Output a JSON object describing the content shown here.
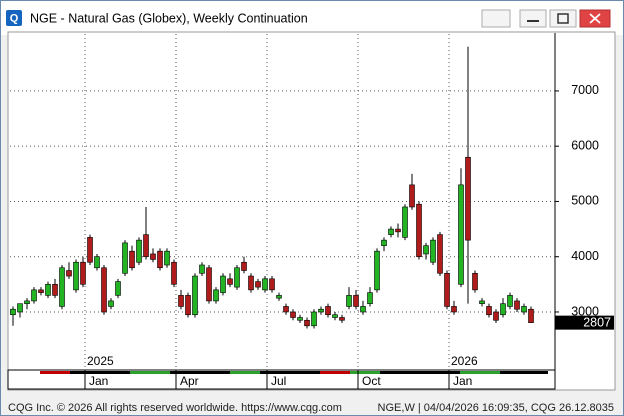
{
  "window": {
    "title": "NGE - Natural Gas (Globex), Weekly Continuation",
    "footer_left": "CQG Inc. © 2026 All rights reserved worldwide. https://www.cqg.com",
    "footer_right": "NGE,W | 04/04/2026 16:09:35, CQG 26.12.8035"
  },
  "chart_data": {
    "type": "candlestick",
    "categories": [
      null,
      null,
      null,
      null,
      null,
      null,
      null,
      null,
      null,
      null,
      null,
      null,
      "Jan",
      null,
      null,
      null,
      null,
      null,
      null,
      null,
      null,
      null,
      null,
      null,
      null,
      "Apr",
      null,
      null,
      null,
      null,
      null,
      null,
      null,
      null,
      null,
      null,
      null,
      null,
      "Jul",
      null,
      null,
      null,
      null,
      null,
      null,
      null,
      null,
      null,
      null,
      null,
      null,
      "Oct",
      null,
      null,
      null,
      null,
      null,
      null,
      null,
      null,
      null,
      null,
      null,
      null,
      "Jan",
      null,
      null,
      null,
      null,
      null,
      null,
      null,
      null,
      null,
      null
    ],
    "year_labels": [
      null,
      null,
      null,
      null,
      null,
      null,
      null,
      null,
      null,
      null,
      null,
      null,
      "2025",
      null,
      null,
      null,
      null,
      null,
      null,
      null,
      null,
      null,
      null,
      null,
      null,
      null,
      null,
      null,
      null,
      null,
      null,
      null,
      null,
      null,
      null,
      null,
      null,
      null,
      null,
      null,
      null,
      null,
      null,
      null,
      null,
      null,
      null,
      null,
      null,
      null,
      null,
      null,
      null,
      null,
      null,
      null,
      null,
      null,
      null,
      null,
      null,
      null,
      null,
      null,
      "2026",
      null,
      null,
      null,
      null,
      null,
      null,
      null,
      null,
      null,
      null
    ],
    "open": [
      2950,
      3000,
      3150,
      3200,
      3400,
      3300,
      3500,
      3100,
      3750,
      3400,
      3900,
      4350,
      3800,
      3800,
      3100,
      3300,
      3700,
      4100,
      3900,
      4400,
      4050,
      4100,
      3850,
      3900,
      3300,
      3300,
      2950,
      3700,
      3800,
      3200,
      3350,
      3600,
      3450,
      3900,
      3650,
      3550,
      3400,
      3600,
      3250,
      3100,
      3000,
      2850,
      2850,
      2750,
      3000,
      3100,
      2900,
      2900,
      3100,
      3300,
      3000,
      3150,
      3400,
      4200,
      4400,
      4500,
      4350,
      5300,
      4950,
      4050,
      3900,
      4400,
      3700,
      3100,
      3500,
      5800,
      3700,
      3150,
      3100,
      3000,
      2950,
      3100,
      3200,
      3000,
      3050
    ],
    "high": [
      3100,
      3150,
      3250,
      3450,
      3450,
      3550,
      3600,
      3850,
      3900,
      3950,
      4000,
      4400,
      4050,
      3850,
      3250,
      3600,
      4300,
      4200,
      4350,
      4900,
      4150,
      4150,
      4150,
      3950,
      3400,
      3350,
      3700,
      3900,
      3850,
      3450,
      3700,
      3700,
      3850,
      4000,
      3700,
      3600,
      3650,
      3650,
      3350,
      3150,
      3050,
      2950,
      2900,
      3050,
      3100,
      3150,
      3000,
      2950,
      3450,
      3400,
      3200,
      3450,
      4150,
      4350,
      4550,
      4600,
      4950,
      5500,
      5000,
      4250,
      4350,
      4450,
      3750,
      3200,
      5600,
      7800,
      3750,
      3250,
      3150,
      3050,
      3250,
      3350,
      3250,
      3150,
      3100
    ],
    "low": [
      2750,
      2900,
      3050,
      3150,
      3300,
      3250,
      3250,
      3050,
      3600,
      3350,
      3450,
      3850,
      3750,
      2950,
      3050,
      3250,
      3650,
      3750,
      3850,
      3950,
      3900,
      3750,
      3800,
      3450,
      3050,
      2900,
      2900,
      3650,
      3150,
      3150,
      3300,
      3450,
      3400,
      3700,
      3350,
      3400,
      3350,
      3350,
      3200,
      2950,
      2850,
      2800,
      2700,
      2700,
      2950,
      2900,
      2850,
      2800,
      3050,
      3050,
      2950,
      3100,
      3350,
      4100,
      4350,
      4350,
      4300,
      4850,
      3950,
      3950,
      3850,
      3650,
      3050,
      2950,
      3450,
      3150,
      3350,
      3100,
      2900,
      2800,
      2900,
      3050,
      3000,
      2950,
      2800
    ],
    "close": [
      3050,
      3150,
      3200,
      3400,
      3350,
      3500,
      3300,
      3800,
      3650,
      3900,
      3500,
      3900,
      4000,
      3000,
      3200,
      3550,
      4250,
      3800,
      4300,
      4000,
      3950,
      3800,
      4100,
      3500,
      3100,
      2950,
      3650,
      3850,
      3200,
      3400,
      3650,
      3500,
      3800,
      3750,
      3400,
      3450,
      3600,
      3400,
      3300,
      3000,
      2900,
      2900,
      2750,
      3000,
      3050,
      2950,
      2950,
      2850,
      3300,
      3100,
      3100,
      3350,
      4100,
      4300,
      4500,
      4450,
      4900,
      4900,
      4000,
      4200,
      4300,
      3700,
      3100,
      3000,
      5300,
      4300,
      3400,
      3200,
      2950,
      2850,
      3150,
      3300,
      3050,
      3100,
      2807
    ],
    "up_color": "#22b422",
    "down_color": "#b01c1c",
    "ylim": [
      1950,
      8030
    ],
    "yticks": [
      3000,
      4000,
      5000,
      6000,
      7000
    ],
    "grid": true,
    "last_value": 2807
  }
}
